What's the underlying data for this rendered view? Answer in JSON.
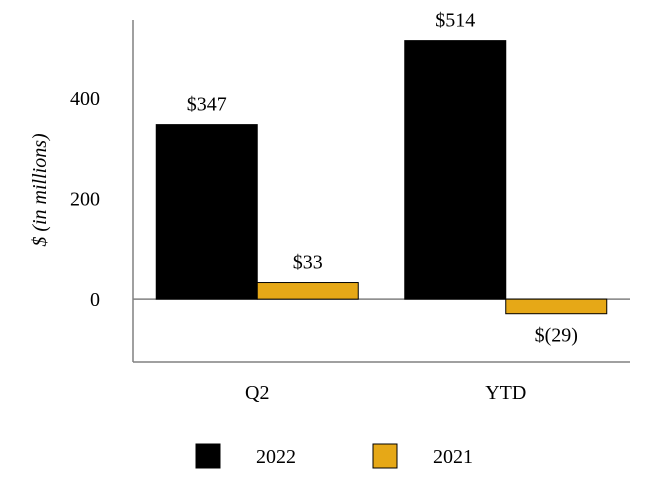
{
  "chart_data": {
    "type": "bar",
    "categories": [
      "Q2",
      "YTD"
    ],
    "series": [
      {
        "name": "2022",
        "values": [
          347,
          514
        ],
        "labels": [
          "$347",
          "$514"
        ],
        "color": "#000000"
      },
      {
        "name": "2021",
        "values": [
          33,
          -29
        ],
        "labels": [
          "$33",
          "$(29)"
        ],
        "color": "#E6A817"
      }
    ],
    "ylabel": "$ (in millions)",
    "yticks": [
      0,
      200,
      400
    ],
    "ylim": [
      -125,
      555
    ],
    "grid": false,
    "legend": "bottom-center"
  }
}
